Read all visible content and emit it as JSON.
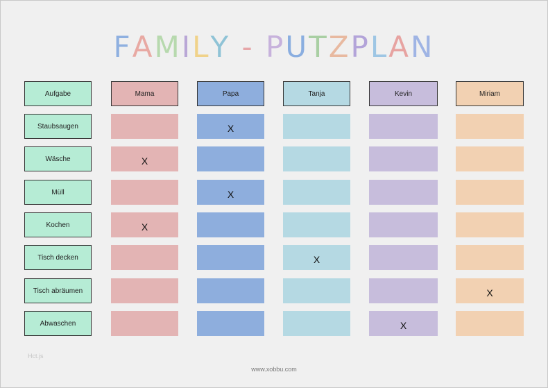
{
  "title": "FAMILY - PUTZPLAN",
  "title_colors": [
    "#8fb0e0",
    "#e8a9a3",
    "#b7d9ae",
    "#b9a7d6",
    "#f0d28a",
    "#8fc3d6",
    "#e6a6a8",
    "#c7b2dc",
    "#8aaee0",
    "#a9cfa3",
    "#e8b9a0",
    "#b3a4d9",
    "#9ec6e4",
    "#e7a3a1",
    "#9fb4e4",
    "#c4b0e0",
    "#8eb6e6"
  ],
  "header_task": "Aufgabe",
  "people": [
    {
      "name": "Mama",
      "header_color": "#e3b4b4",
      "cell_color": "#e3b4b4"
    },
    {
      "name": "Papa",
      "header_color": "#8eaedd",
      "cell_color": "#8eaedd"
    },
    {
      "name": "Tanja",
      "header_color": "#b5d9e3",
      "cell_color": "#b5d9e3"
    },
    {
      "name": "Kevin",
      "header_color": "#c7bddc",
      "cell_color": "#c7bddc"
    },
    {
      "name": "Miriam",
      "header_color": "#f2d1b2",
      "cell_color": "#f2d1b2"
    }
  ],
  "task_color": "#b6ecd5",
  "tasks": [
    {
      "label": "Staubsaugen",
      "marks": [
        "",
        "X",
        "",
        "",
        ""
      ]
    },
    {
      "label": "Wäsche",
      "marks": [
        "X",
        "",
        "",
        "",
        ""
      ]
    },
    {
      "label": "Müll",
      "marks": [
        "",
        "X",
        "",
        "",
        ""
      ]
    },
    {
      "label": "Kochen",
      "marks": [
        "X",
        "",
        "",
        "",
        ""
      ]
    },
    {
      "label": "Tisch decken",
      "marks": [
        "",
        "",
        "X",
        "",
        ""
      ]
    },
    {
      "label": "Tisch abräumen",
      "marks": [
        "",
        "",
        "",
        "",
        "X"
      ]
    },
    {
      "label": "Abwaschen",
      "marks": [
        "",
        "",
        "",
        "X",
        ""
      ]
    }
  ],
  "note": "Hct.js",
  "footer": "www.xobbu.com"
}
